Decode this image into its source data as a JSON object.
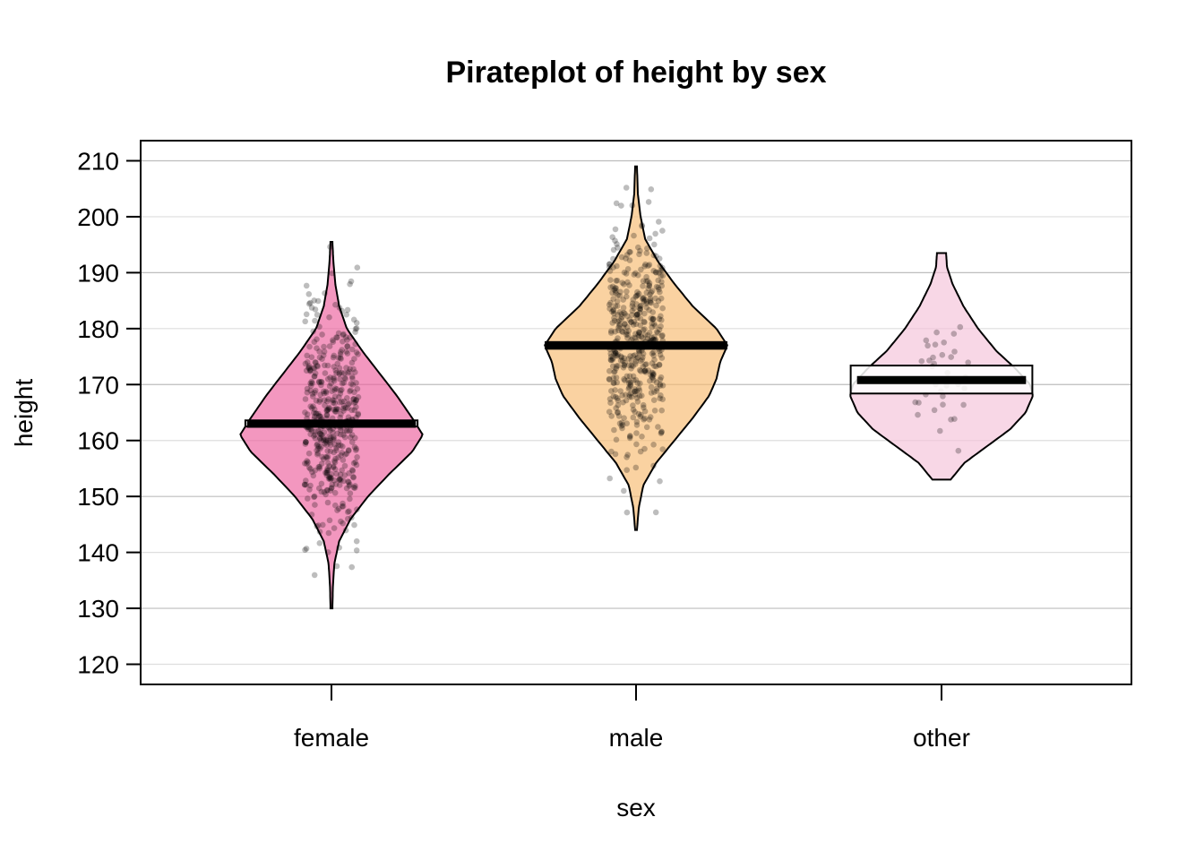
{
  "chart_data": {
    "type": "pirateplot",
    "title": "Pirateplot of height by sex",
    "xlabel": "sex",
    "ylabel": "height",
    "ylim": [
      116.4,
      213.6
    ],
    "yticks": [
      120,
      130,
      140,
      150,
      160,
      170,
      180,
      190,
      200,
      210
    ],
    "ytick_labels": [
      "120",
      "130",
      "140",
      "150",
      "160",
      "170",
      "180",
      "190",
      "200",
      "210"
    ],
    "grid": "horizontal",
    "categories": [
      "female",
      "male",
      "other"
    ],
    "series": [
      {
        "name": "female",
        "color": "#EC5F9C",
        "mean": 163.0,
        "hdi": [
          162.5,
          163.6
        ],
        "min": 130,
        "max": 195.5,
        "n_points": 480,
        "density": [
          [
            130,
            0.01
          ],
          [
            134,
            0.015
          ],
          [
            138,
            0.03
          ],
          [
            142,
            0.08
          ],
          [
            146,
            0.2
          ],
          [
            150,
            0.38
          ],
          [
            154,
            0.6
          ],
          [
            158,
            0.84
          ],
          [
            161,
            0.95
          ],
          [
            164,
            0.84
          ],
          [
            168,
            0.68
          ],
          [
            172,
            0.5
          ],
          [
            176,
            0.32
          ],
          [
            180,
            0.16
          ],
          [
            184,
            0.08
          ],
          [
            188,
            0.04
          ],
          [
            192,
            0.02
          ],
          [
            195.5,
            0.01
          ]
        ]
      },
      {
        "name": "male",
        "color": "#F8BA6E",
        "mean": 177.0,
        "hdi": [
          176.4,
          177.6
        ],
        "min": 144,
        "max": 209,
        "n_points": 480,
        "density": [
          [
            144,
            0.01
          ],
          [
            148,
            0.03
          ],
          [
            152,
            0.08
          ],
          [
            156,
            0.22
          ],
          [
            160,
            0.42
          ],
          [
            164,
            0.62
          ],
          [
            168,
            0.8
          ],
          [
            171,
            0.88
          ],
          [
            174,
            0.92
          ],
          [
            177,
            1.0
          ],
          [
            180,
            0.88
          ],
          [
            184,
            0.62
          ],
          [
            188,
            0.42
          ],
          [
            192,
            0.24
          ],
          [
            196,
            0.1
          ],
          [
            200,
            0.05
          ],
          [
            204,
            0.02
          ],
          [
            209,
            0.01
          ]
        ]
      },
      {
        "name": "other",
        "color": "#F5C1D9",
        "mean": 170.8,
        "hdi": [
          168.4,
          173.4
        ],
        "min": 153,
        "max": 193.5,
        "n_points": 36,
        "density": [
          [
            153,
            0.1
          ],
          [
            156,
            0.25
          ],
          [
            159,
            0.5
          ],
          [
            162,
            0.75
          ],
          [
            165,
            0.92
          ],
          [
            168,
            1.0
          ],
          [
            170,
            0.97
          ],
          [
            173,
            0.8
          ],
          [
            176,
            0.6
          ],
          [
            180,
            0.4
          ],
          [
            184,
            0.24
          ],
          [
            188,
            0.12
          ],
          [
            191,
            0.06
          ],
          [
            193.5,
            0.05
          ]
        ]
      }
    ]
  }
}
